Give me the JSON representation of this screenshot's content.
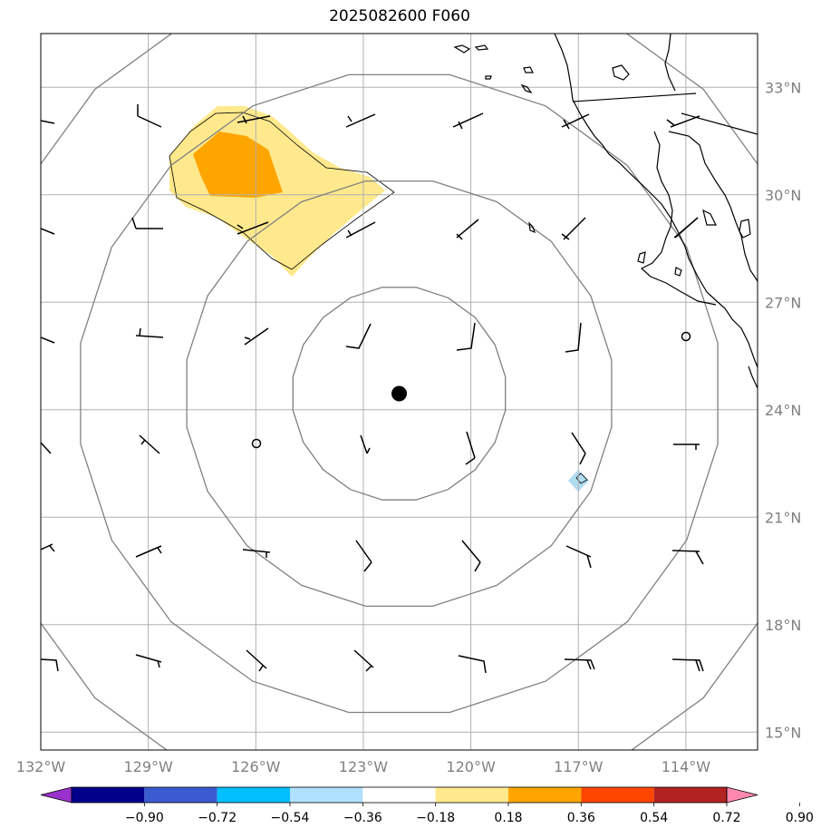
{
  "title": "2025082600 F060",
  "map": {
    "extent": {
      "lon": [
        -132,
        -112
      ],
      "lat": [
        14.5,
        34.5
      ]
    },
    "storm_center": {
      "lon": -122,
      "lat": 24.45
    },
    "range_ring_radii_deg": [
      3,
      6,
      9,
      12
    ],
    "lon_ticks": [
      {
        "lon": -132,
        "label": "132°W"
      },
      {
        "lon": -129,
        "label": "129°W"
      },
      {
        "lon": -126,
        "label": "126°W"
      },
      {
        "lon": -123,
        "label": "123°W"
      },
      {
        "lon": -120,
        "label": "120°W"
      },
      {
        "lon": -117,
        "label": "117°W"
      },
      {
        "lon": -114,
        "label": "114°W"
      }
    ],
    "lat_ticks": [
      {
        "lat": 33,
        "label": "33°N"
      },
      {
        "lat": 30,
        "label": "30°N"
      },
      {
        "lat": 27,
        "label": "27°N"
      },
      {
        "lat": 24,
        "label": "24°N"
      },
      {
        "lat": 21,
        "label": "21°N"
      },
      {
        "lat": 18,
        "label": "18°N"
      },
      {
        "lat": 15,
        "label": "15°N"
      }
    ],
    "colors": {
      "grid": "#b0b0b0",
      "ring": "#808080",
      "coast": "#000000"
    }
  },
  "colorbar": {
    "colors": [
      "#9932cc",
      "#00008b",
      "#3b5bd0",
      "#00bfff",
      "#b0e0ff",
      "#ffffff",
      "#ffe98c",
      "#ffa500",
      "#ff4500",
      "#b22222",
      "#ff88b0"
    ],
    "labels": [
      "−0.90",
      "−0.72",
      "−0.54",
      "−0.36",
      "−0.18",
      "0.18",
      "0.36",
      "0.54",
      "0.72",
      "0.90"
    ]
  }
}
